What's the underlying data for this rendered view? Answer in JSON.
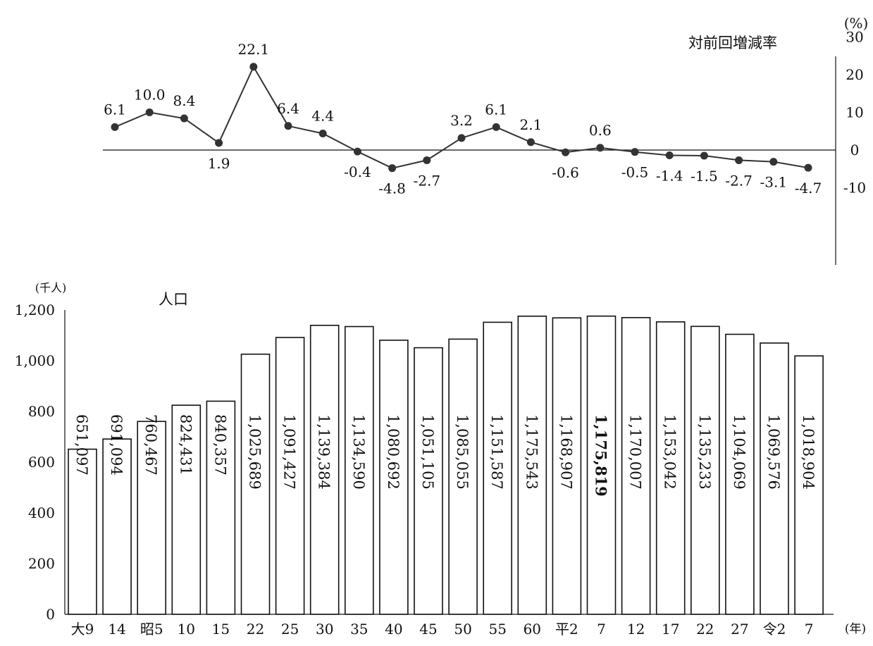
{
  "chart_data": [
    {
      "type": "line",
      "title": "対前回増減率",
      "unit": "(%)",
      "ylim": [
        -10,
        30
      ],
      "yticks": [
        "30",
        "20",
        "10",
        "0",
        "-10"
      ],
      "values": [
        6.1,
        10.0,
        8.4,
        1.9,
        22.1,
        6.4,
        4.4,
        -0.4,
        -4.8,
        -2.7,
        3.2,
        6.1,
        2.1,
        -0.6,
        0.6,
        -0.5,
        -1.4,
        -1.5,
        -2.7,
        -3.1,
        -4.7
      ],
      "labels": [
        "6.1",
        "10.0",
        "8.4",
        "1.9",
        "22.1",
        "6.4",
        "4.4",
        "-0.4",
        "-4.8",
        "-2.7",
        "3.2",
        "6.1",
        "2.1",
        "-0.6",
        "0.6",
        "-0.5",
        "-1.4",
        "-1.5",
        "-2.7",
        "-3.1",
        "-4.7"
      ]
    },
    {
      "type": "bar",
      "title": "人口",
      "unit": "(千人)",
      "xunit": "(年)",
      "ylim": [
        0,
        1200
      ],
      "yticks": [
        "0",
        "200",
        "400",
        "600",
        "800",
        "1,000",
        "1,200"
      ],
      "categories": [
        "大9",
        "14",
        "昭5",
        "10",
        "15",
        "22",
        "25",
        "30",
        "35",
        "40",
        "45",
        "50",
        "55",
        "60",
        "平2",
        "7",
        "12",
        "17",
        "22",
        "27",
        "令2",
        "7"
      ],
      "values": [
        651.097,
        691.094,
        760.467,
        824.431,
        840.357,
        1025.689,
        1091.427,
        1139.384,
        1134.59,
        1080.692,
        1051.105,
        1085.055,
        1151.587,
        1175.543,
        1168.907,
        1175.819,
        1170.007,
        1153.042,
        1135.233,
        1104.069,
        1069.576,
        1018.904
      ],
      "labels": [
        "651,097",
        "691,094",
        "760,467",
        "824,431",
        "840,357",
        "1,025,689",
        "1,091,427",
        "1,139,384",
        "1,134,590",
        "1,080,692",
        "1,051,105",
        "1,085,055",
        "1,151,587",
        "1,175,543",
        "1,168,907",
        "1,175,819",
        "1,170,007",
        "1,153,042",
        "1,135,233",
        "1,104,069",
        "1,069,576",
        "1,018,904"
      ],
      "highlight_index": 15
    }
  ]
}
